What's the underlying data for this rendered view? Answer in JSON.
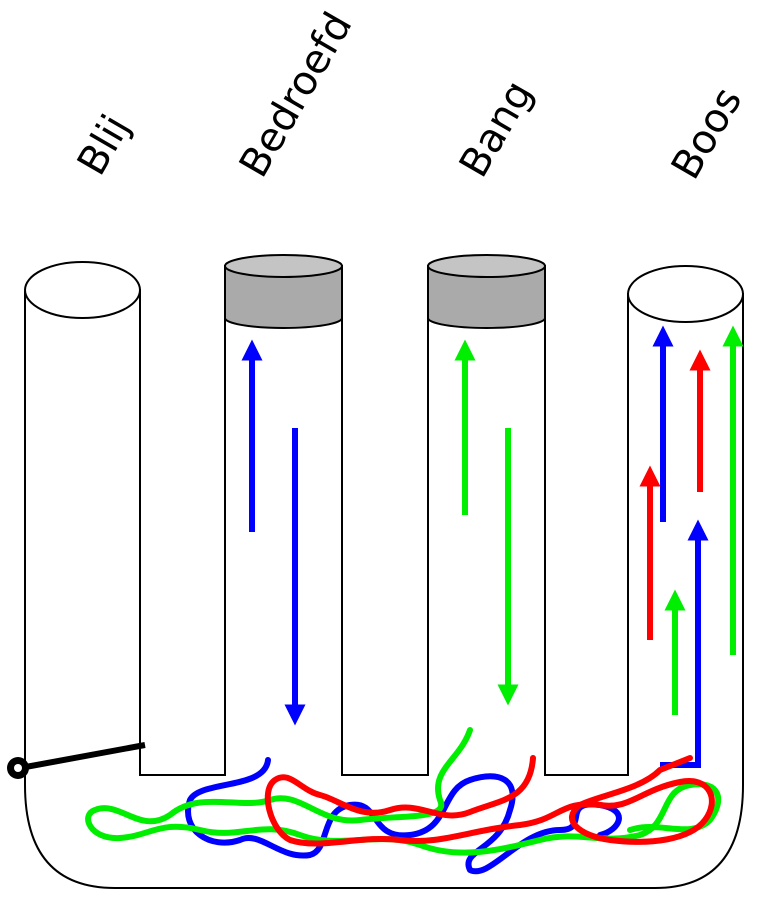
{
  "labels": [
    "Blij",
    "Bedroefd",
    "Bang",
    "Boos"
  ]
}
